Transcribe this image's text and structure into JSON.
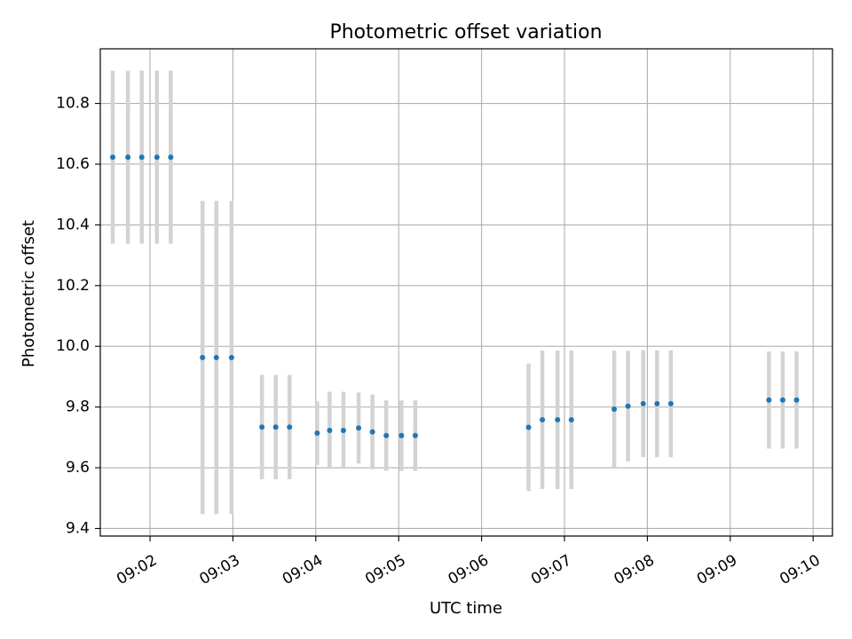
{
  "chart_data": {
    "type": "scatter",
    "title": "Photometric offset variation",
    "xlabel": "UTC time",
    "ylabel": "Photometric offset",
    "grid": true,
    "xlim": [
      "09:01:24",
      "09:10:14"
    ],
    "ylim": [
      9.375,
      10.98
    ],
    "x_ticks": [
      "09:02",
      "09:03",
      "09:04",
      "09:05",
      "09:06",
      "09:07",
      "09:08",
      "09:09",
      "09:10"
    ],
    "y_ticks": [
      9.4,
      9.6,
      9.8,
      10.0,
      10.2,
      10.4,
      10.6,
      10.8
    ],
    "y_tick_labels": [
      "9.4",
      "9.6",
      "9.8",
      "10.0",
      "10.2",
      "10.4",
      "10.6",
      "10.8"
    ],
    "marker_color": "#1f77b4",
    "errorbar_color": "#d3d3d3",
    "points": [
      {
        "t": "09:01:33",
        "y": 10.623,
        "err": 0.285
      },
      {
        "t": "09:01:44",
        "y": 10.623,
        "err": 0.285
      },
      {
        "t": "09:01:54",
        "y": 10.623,
        "err": 0.285
      },
      {
        "t": "09:02:05",
        "y": 10.623,
        "err": 0.285
      },
      {
        "t": "09:02:15",
        "y": 10.623,
        "err": 0.285
      },
      {
        "t": "09:02:38",
        "y": 9.963,
        "err": 0.516
      },
      {
        "t": "09:02:48",
        "y": 9.963,
        "err": 0.516
      },
      {
        "t": "09:02:59",
        "y": 9.963,
        "err": 0.516
      },
      {
        "t": "09:03:21",
        "y": 9.734,
        "err": 0.172
      },
      {
        "t": "09:03:31",
        "y": 9.734,
        "err": 0.172
      },
      {
        "t": "09:03:41",
        "y": 9.734,
        "err": 0.172
      },
      {
        "t": "09:04:01",
        "y": 9.714,
        "err": 0.105
      },
      {
        "t": "09:04:10",
        "y": 9.723,
        "err": 0.127
      },
      {
        "t": "09:04:20",
        "y": 9.723,
        "err": 0.127
      },
      {
        "t": "09:04:31",
        "y": 9.731,
        "err": 0.117
      },
      {
        "t": "09:04:41",
        "y": 9.718,
        "err": 0.123
      },
      {
        "t": "09:04:51",
        "y": 9.706,
        "err": 0.116
      },
      {
        "t": "09:05:02",
        "y": 9.706,
        "err": 0.116
      },
      {
        "t": "09:05:12",
        "y": 9.706,
        "err": 0.116
      },
      {
        "t": "09:06:34",
        "y": 9.733,
        "err": 0.21
      },
      {
        "t": "09:06:44",
        "y": 9.758,
        "err": 0.228
      },
      {
        "t": "09:06:55",
        "y": 9.758,
        "err": 0.228
      },
      {
        "t": "09:07:05",
        "y": 9.758,
        "err": 0.228
      },
      {
        "t": "09:07:36",
        "y": 9.793,
        "err": 0.193
      },
      {
        "t": "09:07:46",
        "y": 9.803,
        "err": 0.182
      },
      {
        "t": "09:07:57",
        "y": 9.811,
        "err": 0.176
      },
      {
        "t": "09:08:07",
        "y": 9.811,
        "err": 0.176
      },
      {
        "t": "09:08:17",
        "y": 9.811,
        "err": 0.176
      },
      {
        "t": "09:09:28",
        "y": 9.823,
        "err": 0.16
      },
      {
        "t": "09:09:38",
        "y": 9.823,
        "err": 0.16
      },
      {
        "t": "09:09:48",
        "y": 9.823,
        "err": 0.16
      }
    ]
  }
}
